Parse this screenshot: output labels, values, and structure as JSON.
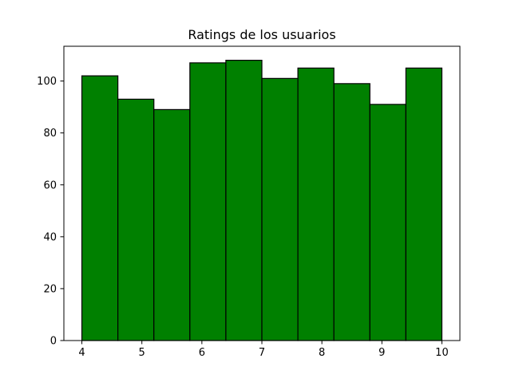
{
  "chart_data": {
    "type": "bar",
    "title": "Ratings de los usuarios",
    "xlabel": "",
    "ylabel": "",
    "bin_edges": [
      4.0,
      4.6,
      5.2,
      5.8,
      6.4,
      7.0,
      7.6,
      8.2,
      8.8,
      9.4,
      10.0
    ],
    "values": [
      102,
      93,
      89,
      107,
      108,
      101,
      105,
      99,
      91,
      105
    ],
    "xlim": [
      3.7,
      10.3
    ],
    "ylim": [
      0,
      113.4
    ],
    "xticks": [
      4,
      5,
      6,
      7,
      8,
      9,
      10
    ],
    "yticks": [
      0,
      20,
      40,
      60,
      80,
      100
    ],
    "grid": false,
    "legend": "none",
    "bar_color": "#008000",
    "edge_color": "#000000"
  }
}
